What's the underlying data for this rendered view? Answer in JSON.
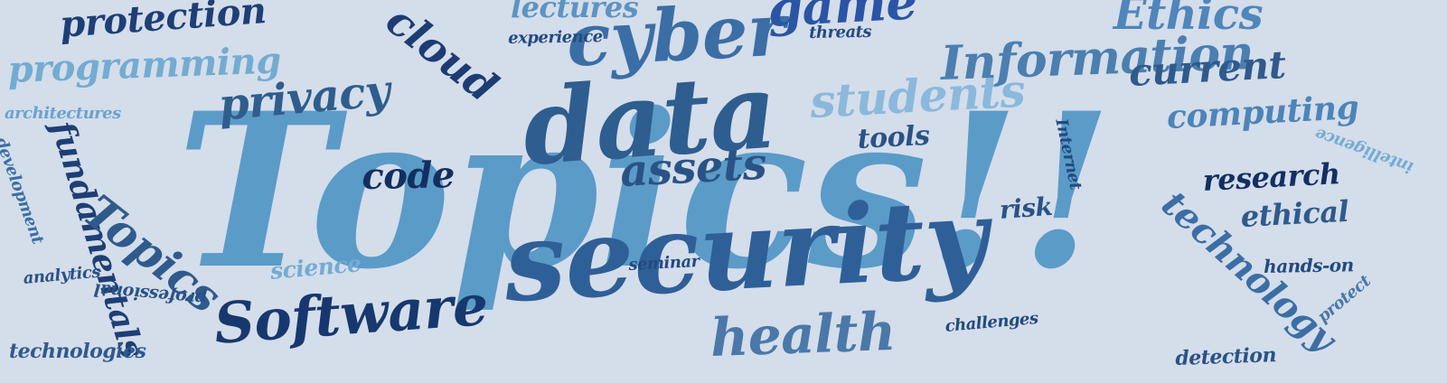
{
  "words": [
    {
      "id": "topics-main",
      "text": "Topics!!",
      "color": "#5b9bc8"
    },
    {
      "id": "security",
      "text": "security",
      "color": "#2f5f97"
    },
    {
      "id": "data",
      "text": "data",
      "color": "#2e5d8f"
    },
    {
      "id": "cyber",
      "text": "cyber",
      "color": "#3b6ea5"
    },
    {
      "id": "software",
      "text": "Software",
      "color": "#17386e"
    },
    {
      "id": "health",
      "text": "health",
      "color": "#4a78a8"
    },
    {
      "id": "students",
      "text": "students",
      "color": "#8ab9dc"
    },
    {
      "id": "information",
      "text": "Information",
      "color": "#4a7fb0"
    },
    {
      "id": "game",
      "text": "game",
      "color": "#2a55a5"
    },
    {
      "id": "ethics",
      "text": "Ethics",
      "color": "#4f86bb"
    },
    {
      "id": "current",
      "text": "current",
      "color": "#2f5a8c"
    },
    {
      "id": "computing",
      "text": "computing",
      "color": "#4d84b9"
    },
    {
      "id": "privacy",
      "text": "privacy",
      "color": "#2f5d8c"
    },
    {
      "id": "protection",
      "text": "protection",
      "color": "#1e3f75"
    },
    {
      "id": "programming",
      "text": "programming",
      "color": "#73acd2"
    },
    {
      "id": "cloud",
      "text": "cloud",
      "color": "#1d3c73"
    },
    {
      "id": "lectures",
      "text": "lectures",
      "color": "#5d93c2"
    },
    {
      "id": "experience",
      "text": "experience",
      "color": "#234a80"
    },
    {
      "id": "threats",
      "text": "threats",
      "color": "#234a80"
    },
    {
      "id": "architectures",
      "text": "architectures",
      "color": "#6aa3cc"
    },
    {
      "id": "code",
      "text": "code",
      "color": "#132f62"
    },
    {
      "id": "assets",
      "text": "assets",
      "color": "#2a5385"
    },
    {
      "id": "tools",
      "text": "tools",
      "color": "#2a5385"
    },
    {
      "id": "fundamentals",
      "text": "fundamentals",
      "color": "#1e3f75"
    },
    {
      "id": "topics-small",
      "text": "Topics",
      "color": "#2f5a8c"
    },
    {
      "id": "development",
      "text": "development",
      "color": "#3b6ea5"
    },
    {
      "id": "analytics",
      "text": "analytics",
      "color": "#2a5385"
    },
    {
      "id": "professional",
      "text": "professional",
      "color": "#2a5385"
    },
    {
      "id": "technologies",
      "text": "technologies",
      "color": "#2f5a8c"
    },
    {
      "id": "science",
      "text": "science",
      "color": "#73acd2"
    },
    {
      "id": "seminar",
      "text": "seminar",
      "color": "#234a80"
    },
    {
      "id": "risk",
      "text": "risk",
      "color": "#2a5385"
    },
    {
      "id": "internet",
      "text": "Internet",
      "color": "#234a80"
    },
    {
      "id": "intelligence",
      "text": "intelligence",
      "color": "#73acd2"
    },
    {
      "id": "research",
      "text": "research",
      "color": "#132f62"
    },
    {
      "id": "ethical",
      "text": "ethical",
      "color": "#2f5a8c"
    },
    {
      "id": "technology",
      "text": "technology",
      "color": "#3b6ea5"
    },
    {
      "id": "hands-on",
      "text": "hands-on",
      "color": "#234a80"
    },
    {
      "id": "protect",
      "text": "protect",
      "color": "#4a78a8"
    },
    {
      "id": "challenges",
      "text": "challenges",
      "color": "#234a80"
    },
    {
      "id": "detection",
      "text": "detection",
      "color": "#2a5385"
    }
  ]
}
